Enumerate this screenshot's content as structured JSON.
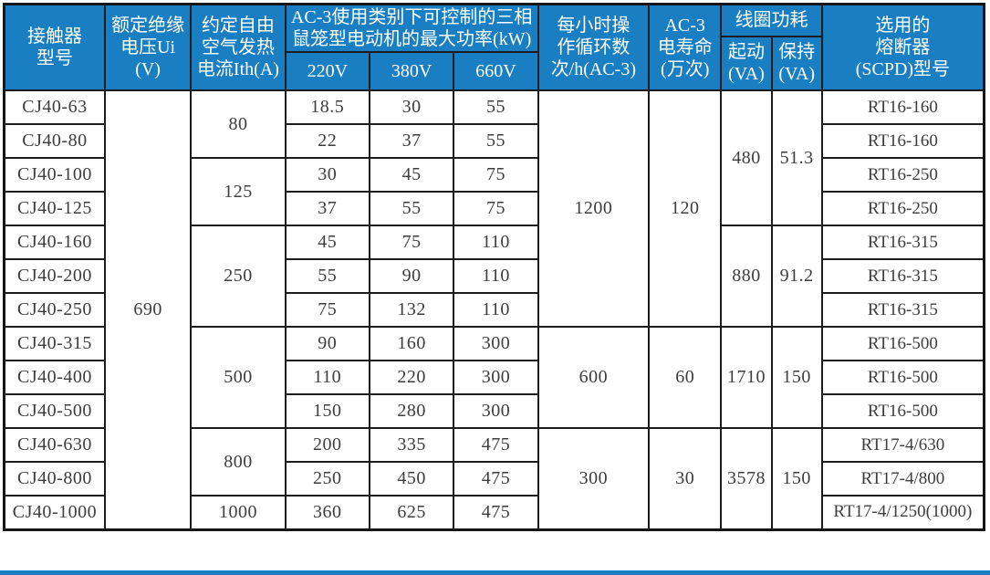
{
  "colors": {
    "header_bg": "#1a7ec2",
    "header_text": "#ffffff",
    "body_text": "#3d3d3d",
    "grid_line": "#1c1c1c",
    "bottom_accent_bar": "#1a7ec2"
  },
  "table": {
    "header": {
      "model": "接触器\n型号",
      "insulation_voltage": "额定绝缘\n电压Ui (V)",
      "thermal_current": "约定自由\n空气发热\n电流Ith(A)",
      "power_group": "AC-3使用类别下可控制的三相\n鼠笼型电动机的最大功率(kW)",
      "power_220": "220V",
      "power_380": "380V",
      "power_660": "660V",
      "cycles": "每小时操\n作循环数\n次/h(AC-3)",
      "electrical_life": "AC-3\n电寿命\n(万次)",
      "coil_group": "线圈功耗",
      "coil_start": "起动\n(VA)",
      "coil_hold": "保持\n(VA)",
      "fuse": "选用的\n熔断器\n(SCPD)型号"
    },
    "rows": [
      {
        "cells": [
          {
            "n": "model-cell",
            "v": "CJ40-63"
          },
          {
            "n": "ui-cell",
            "v": "690",
            "rs": 13
          },
          {
            "n": "ith-cell",
            "v": "80",
            "rs": 2
          },
          {
            "n": "power-220-cell",
            "v": "18.5"
          },
          {
            "n": "power-380-cell",
            "v": "30"
          },
          {
            "n": "power-660-cell",
            "v": "55"
          },
          {
            "n": "cycles-cell",
            "v": "1200",
            "rs": 7
          },
          {
            "n": "life-cell",
            "v": "120",
            "rs": 7
          },
          {
            "n": "coil-start-cell",
            "v": "480",
            "rs": 4
          },
          {
            "n": "coil-hold-cell",
            "v": "51.3",
            "rs": 4
          },
          {
            "n": "fuse-cell",
            "v": "RT16-160"
          }
        ]
      },
      {
        "cells": [
          {
            "n": "model-cell",
            "v": "CJ40-80"
          },
          {
            "n": "power-220-cell",
            "v": "22"
          },
          {
            "n": "power-380-cell",
            "v": "37"
          },
          {
            "n": "power-660-cell",
            "v": "55"
          },
          {
            "n": "fuse-cell",
            "v": "RT16-160"
          }
        ]
      },
      {
        "cells": [
          {
            "n": "model-cell",
            "v": "CJ40-100"
          },
          {
            "n": "ith-cell",
            "v": "125",
            "rs": 2
          },
          {
            "n": "power-220-cell",
            "v": "30"
          },
          {
            "n": "power-380-cell",
            "v": "45"
          },
          {
            "n": "power-660-cell",
            "v": "75"
          },
          {
            "n": "fuse-cell",
            "v": "RT16-250"
          }
        ]
      },
      {
        "cells": [
          {
            "n": "model-cell",
            "v": "CJ40-125"
          },
          {
            "n": "power-220-cell",
            "v": "37"
          },
          {
            "n": "power-380-cell",
            "v": "55"
          },
          {
            "n": "power-660-cell",
            "v": "75"
          },
          {
            "n": "fuse-cell",
            "v": "RT16-250"
          }
        ]
      },
      {
        "cells": [
          {
            "n": "model-cell",
            "v": "CJ40-160"
          },
          {
            "n": "ith-cell",
            "v": "250",
            "rs": 3
          },
          {
            "n": "power-220-cell",
            "v": "45"
          },
          {
            "n": "power-380-cell",
            "v": "75"
          },
          {
            "n": "power-660-cell",
            "v": "110"
          },
          {
            "n": "coil-start-cell",
            "v": "880",
            "rs": 3
          },
          {
            "n": "coil-hold-cell",
            "v": "91.2",
            "rs": 3
          },
          {
            "n": "fuse-cell",
            "v": "RT16-315"
          }
        ]
      },
      {
        "cells": [
          {
            "n": "model-cell",
            "v": "CJ40-200"
          },
          {
            "n": "power-220-cell",
            "v": "55"
          },
          {
            "n": "power-380-cell",
            "v": "90"
          },
          {
            "n": "power-660-cell",
            "v": "110"
          },
          {
            "n": "fuse-cell",
            "v": "RT16-315"
          }
        ]
      },
      {
        "cells": [
          {
            "n": "model-cell",
            "v": "CJ40-250"
          },
          {
            "n": "power-220-cell",
            "v": "75"
          },
          {
            "n": "power-380-cell",
            "v": "132"
          },
          {
            "n": "power-660-cell",
            "v": "110"
          },
          {
            "n": "fuse-cell",
            "v": "RT16-315"
          }
        ]
      },
      {
        "cells": [
          {
            "n": "model-cell",
            "v": "CJ40-315"
          },
          {
            "n": "ith-cell",
            "v": "500",
            "rs": 3
          },
          {
            "n": "power-220-cell",
            "v": "90"
          },
          {
            "n": "power-380-cell",
            "v": "160"
          },
          {
            "n": "power-660-cell",
            "v": "300"
          },
          {
            "n": "cycles-cell",
            "v": "600",
            "rs": 3
          },
          {
            "n": "life-cell",
            "v": "60",
            "rs": 3
          },
          {
            "n": "coil-start-cell",
            "v": "1710",
            "rs": 3
          },
          {
            "n": "coil-hold-cell",
            "v": "150",
            "rs": 3
          },
          {
            "n": "fuse-cell",
            "v": "RT16-500"
          }
        ]
      },
      {
        "cells": [
          {
            "n": "model-cell",
            "v": "CJ40-400"
          },
          {
            "n": "power-220-cell",
            "v": "110"
          },
          {
            "n": "power-380-cell",
            "v": "220"
          },
          {
            "n": "power-660-cell",
            "v": "300"
          },
          {
            "n": "fuse-cell",
            "v": "RT16-500"
          }
        ]
      },
      {
        "cells": [
          {
            "n": "model-cell",
            "v": "CJ40-500"
          },
          {
            "n": "power-220-cell",
            "v": "150"
          },
          {
            "n": "power-380-cell",
            "v": "280"
          },
          {
            "n": "power-660-cell",
            "v": "300"
          },
          {
            "n": "fuse-cell",
            "v": "RT16-500"
          }
        ]
      },
      {
        "cells": [
          {
            "n": "model-cell",
            "v": "CJ40-630"
          },
          {
            "n": "ith-cell",
            "v": "800",
            "rs": 2
          },
          {
            "n": "power-220-cell",
            "v": "200"
          },
          {
            "n": "power-380-cell",
            "v": "335"
          },
          {
            "n": "power-660-cell",
            "v": "475"
          },
          {
            "n": "cycles-cell",
            "v": "300",
            "rs": 3
          },
          {
            "n": "life-cell",
            "v": "30",
            "rs": 3
          },
          {
            "n": "coil-start-cell",
            "v": "3578",
            "rs": 3
          },
          {
            "n": "coil-hold-cell",
            "v": "150",
            "rs": 3
          },
          {
            "n": "fuse-cell",
            "v": "RT17-4/630"
          }
        ]
      },
      {
        "cells": [
          {
            "n": "model-cell",
            "v": "CJ40-800"
          },
          {
            "n": "power-220-cell",
            "v": "250"
          },
          {
            "n": "power-380-cell",
            "v": "450"
          },
          {
            "n": "power-660-cell",
            "v": "475"
          },
          {
            "n": "fuse-cell",
            "v": "RT17-4/800"
          }
        ]
      },
      {
        "cells": [
          {
            "n": "model-cell",
            "v": "CJ40-1000"
          },
          {
            "n": "ith-cell",
            "v": "1000"
          },
          {
            "n": "power-220-cell",
            "v": "360"
          },
          {
            "n": "power-380-cell",
            "v": "625"
          },
          {
            "n": "power-660-cell",
            "v": "475"
          },
          {
            "n": "fuse-cell",
            "v": "RT17-4/1250(1000)"
          }
        ]
      }
    ]
  }
}
